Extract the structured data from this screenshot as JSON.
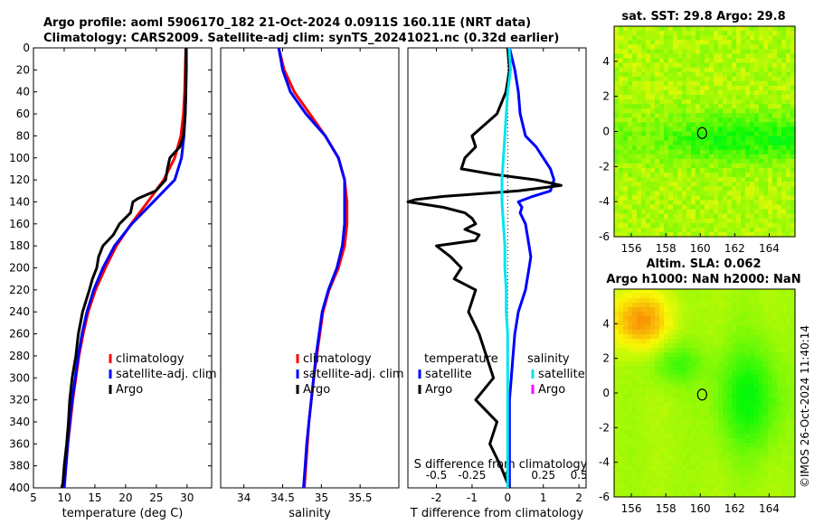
{
  "titles": {
    "line1": "Argo profile: aoml 5906170_182 21-Oct-2024 0.0911S 160.11E (NRT data)",
    "line2": "Climatology: CARS2009. Satellite-adj clim: synTS_20241021.nc (0.32d earlier)",
    "map1": "sat. SST: 29.8 Argo: 29.8",
    "map2a": "Altim. SLA: 0.062",
    "map2b": "Argo h1000: NaN h2000: NaN",
    "side": "©IMOS 26-Oct-2024 11:40:14"
  },
  "colors": {
    "climatology": "#ff0000",
    "satellite": "#0000ff",
    "argo": "#000000",
    "salinity_sat": "#00e5ee",
    "salinity_argo": "#ff00ff"
  },
  "chart_data": [
    {
      "type": "line",
      "name": "temperature-profile",
      "xlabel": "temperature (deg C)",
      "ylabel": "",
      "xlim": [
        5,
        34
      ],
      "ylim": [
        400,
        0
      ],
      "xticks": [
        5,
        10,
        15,
        20,
        25,
        30
      ],
      "yticks": [
        0,
        20,
        40,
        60,
        80,
        100,
        120,
        140,
        160,
        180,
        200,
        220,
        240,
        260,
        280,
        300,
        320,
        340,
        360,
        380,
        400
      ],
      "legend": [
        "climatology",
        "satellite-adj. clim",
        "Argo"
      ],
      "series": [
        {
          "name": "climatology",
          "color": "red",
          "depth": [
            0,
            20,
            40,
            60,
            80,
            100,
            120,
            140,
            160,
            180,
            200,
            220,
            240,
            260,
            280,
            300,
            320,
            340,
            360,
            380,
            400
          ],
          "values": [
            29.8,
            29.7,
            29.6,
            29.4,
            29.0,
            28.0,
            26.2,
            23.6,
            20.9,
            18.5,
            16.7,
            15.1,
            13.9,
            13.1,
            12.4,
            11.9,
            11.4,
            11.0,
            10.6,
            10.3,
            10.0
          ]
        },
        {
          "name": "satellite-adj. clim",
          "color": "blue",
          "depth": [
            0,
            20,
            40,
            60,
            80,
            100,
            120,
            140,
            160,
            180,
            200,
            220,
            240,
            260,
            280,
            300,
            320,
            340,
            360,
            380,
            400
          ],
          "values": [
            29.9,
            29.9,
            29.8,
            29.7,
            29.5,
            29.1,
            28.0,
            24.5,
            21.0,
            18.2,
            16.3,
            14.8,
            13.7,
            12.9,
            12.3,
            11.8,
            11.3,
            10.9,
            10.6,
            10.3,
            10.0
          ]
        },
        {
          "name": "Argo",
          "color": "black",
          "depth": [
            0,
            20,
            40,
            60,
            80,
            90,
            100,
            110,
            120,
            130,
            137,
            140,
            150,
            160,
            170,
            180,
            190,
            200,
            210,
            220,
            240,
            260,
            280,
            300,
            320,
            340,
            360,
            380,
            395,
            400
          ],
          "values": [
            29.8,
            29.8,
            29.8,
            29.7,
            29.4,
            28.8,
            27.2,
            26.8,
            26.5,
            24.9,
            22.0,
            21.2,
            20.8,
            19.0,
            18.0,
            16.3,
            15.6,
            15.3,
            14.6,
            14.1,
            13.0,
            12.3,
            11.9,
            11.3,
            10.9,
            10.7,
            10.4,
            10.0,
            9.8,
            9.6
          ]
        }
      ]
    },
    {
      "type": "line",
      "name": "salinity-profile",
      "xlabel": "salinity",
      "ylabel": "",
      "xlim": [
        33.7,
        36.0
      ],
      "ylim": [
        400,
        0
      ],
      "xticks": [
        34,
        34.5,
        35,
        35.5
      ],
      "yticks": [],
      "legend": [
        "climatology",
        "satellite-adj. clim",
        "Argo"
      ],
      "series": [
        {
          "name": "climatology",
          "color": "red",
          "depth": [
            0,
            20,
            40,
            60,
            80,
            100,
            120,
            140,
            160,
            180,
            200,
            220,
            240,
            260,
            280,
            300,
            320,
            340,
            360,
            380,
            400
          ],
          "values": [
            34.45,
            34.52,
            34.65,
            34.85,
            35.05,
            35.22,
            35.3,
            35.33,
            35.33,
            35.3,
            35.22,
            35.1,
            35.02,
            34.98,
            34.94,
            34.9,
            34.87,
            34.84,
            34.82,
            34.8,
            34.78
          ]
        },
        {
          "name": "satellite-adj. clim",
          "color": "blue",
          "depth": [
            0,
            20,
            40,
            60,
            80,
            100,
            120,
            140,
            160,
            180,
            200,
            220,
            240,
            260,
            280,
            300,
            320,
            340,
            360,
            380,
            400
          ],
          "values": [
            34.45,
            34.5,
            34.6,
            34.8,
            35.05,
            35.22,
            35.3,
            35.3,
            35.3,
            35.27,
            35.2,
            35.09,
            35.01,
            34.97,
            34.93,
            34.9,
            34.87,
            34.84,
            34.81,
            34.79,
            34.77
          ]
        }
      ]
    },
    {
      "type": "line",
      "name": "difference-profile",
      "xlabel": "T difference from climatology",
      "ylabel": "",
      "xlim": [
        -2.8,
        2.2
      ],
      "ylim": [
        400,
        0
      ],
      "xticks": [
        -2,
        -1,
        0,
        1,
        2
      ],
      "s_axis_label": "S difference from climatology",
      "s_ticks": [
        "-0.5",
        "-0.25",
        "0",
        "0.25",
        "0.5"
      ],
      "legend_titles": [
        "temperature",
        "salinity"
      ],
      "legend": [
        "satellite",
        "Argo",
        "satellite",
        "Argo"
      ],
      "series": [
        {
          "name": "T satellite",
          "color": "blue",
          "depth": [
            0,
            20,
            40,
            60,
            80,
            90,
            100,
            110,
            120,
            130,
            135,
            140,
            145,
            150,
            160,
            170,
            180,
            190,
            200,
            220,
            240,
            260,
            280,
            300,
            320,
            340,
            360,
            380,
            400
          ],
          "values": [
            0.05,
            0.2,
            0.3,
            0.35,
            0.5,
            0.8,
            1.0,
            1.2,
            1.3,
            1.2,
            0.7,
            0.3,
            0.4,
            0.35,
            0.5,
            0.55,
            0.6,
            0.65,
            0.6,
            0.5,
            0.3,
            0.2,
            0.15,
            0.1,
            0.05,
            0.05,
            0.05,
            0.05,
            0.05
          ]
        },
        {
          "name": "T Argo",
          "color": "black",
          "depth": [
            0,
            20,
            40,
            60,
            80,
            90,
            100,
            110,
            115,
            120,
            125,
            130,
            135,
            138,
            140,
            145,
            150,
            155,
            160,
            165,
            170,
            175,
            180,
            190,
            200,
            210,
            220,
            240,
            260,
            280,
            300,
            320,
            340,
            360,
            380,
            400
          ],
          "values": [
            0.0,
            0.05,
            -0.05,
            -0.3,
            -1.0,
            -0.9,
            -1.2,
            -1.3,
            -0.4,
            0.8,
            1.5,
            0.3,
            -1.8,
            -2.6,
            -2.8,
            -1.8,
            -1.2,
            -1.0,
            -0.9,
            -1.2,
            -0.8,
            -0.9,
            -2.0,
            -1.6,
            -1.3,
            -1.5,
            -0.9,
            -1.1,
            -0.8,
            -0.6,
            -0.4,
            -0.9,
            -0.3,
            -0.5,
            -0.2,
            0.05
          ]
        },
        {
          "name": "S satellite",
          "color": "cyan",
          "depth": [
            0,
            20,
            40,
            60,
            80,
            100,
            120,
            140,
            160,
            180,
            200,
            220,
            240,
            260,
            280,
            300,
            320,
            340,
            360,
            380,
            400
          ],
          "values": [
            0.01,
            0.02,
            0.0,
            -0.01,
            -0.02,
            -0.03,
            -0.04,
            -0.04,
            -0.03,
            -0.02,
            -0.02,
            -0.01,
            -0.01,
            0.0,
            0.0,
            0.0,
            0.0,
            0.0,
            0.0,
            0.0,
            0.0
          ]
        }
      ]
    },
    {
      "type": "heatmap",
      "name": "sst-map",
      "title": "sat. SST: 29.8 Argo: 29.8",
      "xlim": [
        155,
        165.5
      ],
      "ylim": [
        -6,
        6
      ],
      "xticks": [
        156,
        158,
        160,
        162,
        164
      ],
      "yticks": [
        4,
        2,
        0,
        -2,
        -4,
        -6
      ],
      "argo_location": [
        160.11,
        -0.09
      ]
    },
    {
      "type": "heatmap",
      "name": "sla-map",
      "title": "Altim. SLA: 0.062 / Argo h1000: NaN h2000: NaN",
      "xlim": [
        155,
        165.5
      ],
      "ylim": [
        -6,
        6
      ],
      "xticks": [
        156,
        158,
        160,
        162,
        164
      ],
      "yticks": [
        4,
        2,
        0,
        -2,
        -4,
        -6
      ],
      "argo_location": [
        160.11,
        -0.09
      ]
    }
  ]
}
